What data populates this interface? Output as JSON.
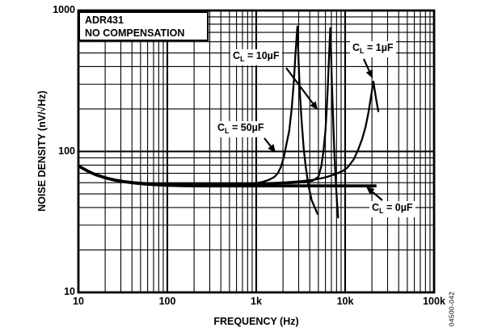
{
  "figure": {
    "background": "#ffffff",
    "foreground": "#000000"
  },
  "chart_data": {
    "type": "line",
    "x_scale": "log",
    "y_scale": "log",
    "xlim": [
      10,
      100000
    ],
    "ylim": [
      10,
      1000
    ],
    "grid": "full log-log grid, black lines on white, minor and major decades, legend none",
    "title_box": {
      "line1": "ADR431",
      "line2": "NO COMPENSATION"
    },
    "xlabel": "FREQUENCY (Hz)",
    "ylabel": "NOISE DENSITY (nV/√Hz)",
    "watermark": "04500-042",
    "x_ticks": [
      {
        "label": "10",
        "value": 10
      },
      {
        "label": "100",
        "value": 100
      },
      {
        "label": "1k",
        "value": 1000
      },
      {
        "label": "10k",
        "value": 10000
      },
      {
        "label": "100k",
        "value": 100000
      }
    ],
    "y_ticks": [
      {
        "label": "1000",
        "value": 1000
      },
      {
        "label": "100",
        "value": 100
      },
      {
        "label": "10",
        "value": 10
      }
    ],
    "series": [
      {
        "name": "CL = 1µF",
        "cap": "1uF",
        "thick": false,
        "points": [
          [
            10,
            79
          ],
          [
            13,
            72
          ],
          [
            16,
            68
          ],
          [
            20,
            65
          ],
          [
            26,
            63
          ],
          [
            33,
            61.5
          ],
          [
            42,
            60.5
          ],
          [
            55,
            59.8
          ],
          [
            70,
            59.3
          ],
          [
            100,
            59
          ],
          [
            200,
            58.8
          ],
          [
            400,
            58.8
          ],
          [
            700,
            59
          ],
          [
            1000,
            59.3
          ],
          [
            1500,
            59.8
          ],
          [
            2200,
            60.5
          ],
          [
            3200,
            61.5
          ],
          [
            4500,
            63
          ],
          [
            6000,
            65.5
          ],
          [
            7800,
            69
          ],
          [
            9500,
            73
          ],
          [
            10650,
            77
          ],
          [
            12500,
            88
          ],
          [
            14000,
            103
          ],
          [
            15500,
            122
          ],
          [
            17000,
            150
          ],
          [
            18300,
            190
          ],
          [
            19400,
            240
          ],
          [
            20300,
            285
          ],
          [
            20800,
            313
          ],
          [
            21400,
            278
          ],
          [
            22300,
            235
          ],
          [
            23600,
            193
          ]
        ]
      },
      {
        "name": "CL = 10µF",
        "cap": "10uF",
        "thick": false,
        "points": [
          [
            10,
            79
          ],
          [
            13,
            72
          ],
          [
            16,
            68
          ],
          [
            20,
            65
          ],
          [
            26,
            62.7
          ],
          [
            33,
            61.2
          ],
          [
            42,
            60.2
          ],
          [
            55,
            59.5
          ],
          [
            70,
            59
          ],
          [
            100,
            58.7
          ],
          [
            200,
            58.5
          ],
          [
            400,
            58.5
          ],
          [
            800,
            58.7
          ],
          [
            1500,
            59
          ],
          [
            2500,
            59.6
          ],
          [
            3500,
            60.5
          ],
          [
            4300,
            62
          ],
          [
            5000,
            66
          ],
          [
            5400,
            79
          ],
          [
            5700,
            100
          ],
          [
            6000,
            140
          ],
          [
            6200,
            200
          ],
          [
            6400,
            300
          ],
          [
            6600,
            480
          ],
          [
            6800,
            750
          ],
          [
            6950,
            500
          ],
          [
            7100,
            300
          ],
          [
            7300,
            180
          ],
          [
            7500,
            110
          ],
          [
            7700,
            78
          ],
          [
            7900,
            57
          ],
          [
            8100,
            44
          ],
          [
            8350,
            34
          ]
        ]
      },
      {
        "name": "CL = 50µF",
        "cap": "50uF",
        "thick": false,
        "points": [
          [
            10,
            79
          ],
          [
            13,
            72
          ],
          [
            16,
            68
          ],
          [
            20,
            65
          ],
          [
            26,
            62.7
          ],
          [
            33,
            61.2
          ],
          [
            42,
            60.2
          ],
          [
            55,
            59.5
          ],
          [
            70,
            59
          ],
          [
            100,
            58.7
          ],
          [
            200,
            58.5
          ],
          [
            400,
            58.6
          ],
          [
            700,
            59
          ],
          [
            1000,
            59.6
          ],
          [
            1200,
            61
          ],
          [
            1400,
            63
          ],
          [
            1600,
            66
          ],
          [
            1750,
            70
          ],
          [
            1900,
            78
          ],
          [
            2050,
            92
          ],
          [
            2200,
            115
          ],
          [
            2350,
            140
          ],
          [
            2500,
            200
          ],
          [
            2650,
            320
          ],
          [
            2780,
            520
          ],
          [
            2900,
            770
          ],
          [
            3000,
            420
          ],
          [
            3100,
            260
          ],
          [
            3250,
            160
          ],
          [
            3420,
            105
          ],
          [
            3600,
            78
          ],
          [
            3850,
            58
          ],
          [
            4200,
            45
          ],
          [
            4900,
            36
          ]
        ]
      },
      {
        "name": "CL = 0µF",
        "cap": "0uF",
        "thick": true,
        "points": [
          [
            10,
            79
          ],
          [
            13,
            72
          ],
          [
            16,
            68
          ],
          [
            20,
            65
          ],
          [
            26,
            62.5
          ],
          [
            33,
            61
          ],
          [
            42,
            59.8
          ],
          [
            55,
            58.8
          ],
          [
            70,
            58.2
          ],
          [
            100,
            57.6
          ],
          [
            150,
            57.2
          ],
          [
            250,
            57
          ],
          [
            500,
            57
          ],
          [
            1000,
            57
          ],
          [
            2000,
            57
          ],
          [
            4000,
            57
          ],
          [
            7000,
            57
          ],
          [
            10000,
            57
          ],
          [
            14000,
            57
          ],
          [
            19000,
            57
          ],
          [
            22500,
            57
          ]
        ]
      }
    ],
    "annotations": [
      {
        "id": "cl10",
        "text": "CL = 10µF",
        "sym": "C",
        "sub": "L",
        "rest": " = 10µF"
      },
      {
        "id": "cl1",
        "text": "CL = 1µF",
        "sym": "C",
        "sub": "L",
        "rest": " = 1µF"
      },
      {
        "id": "cl50",
        "text": "CL = 50µF",
        "sym": "C",
        "sub": "L",
        "rest": " = 50µF"
      },
      {
        "id": "cl0",
        "text": "CL = 0µF",
        "sym": "C",
        "sub": "L",
        "rest": " = 0µF"
      }
    ]
  }
}
